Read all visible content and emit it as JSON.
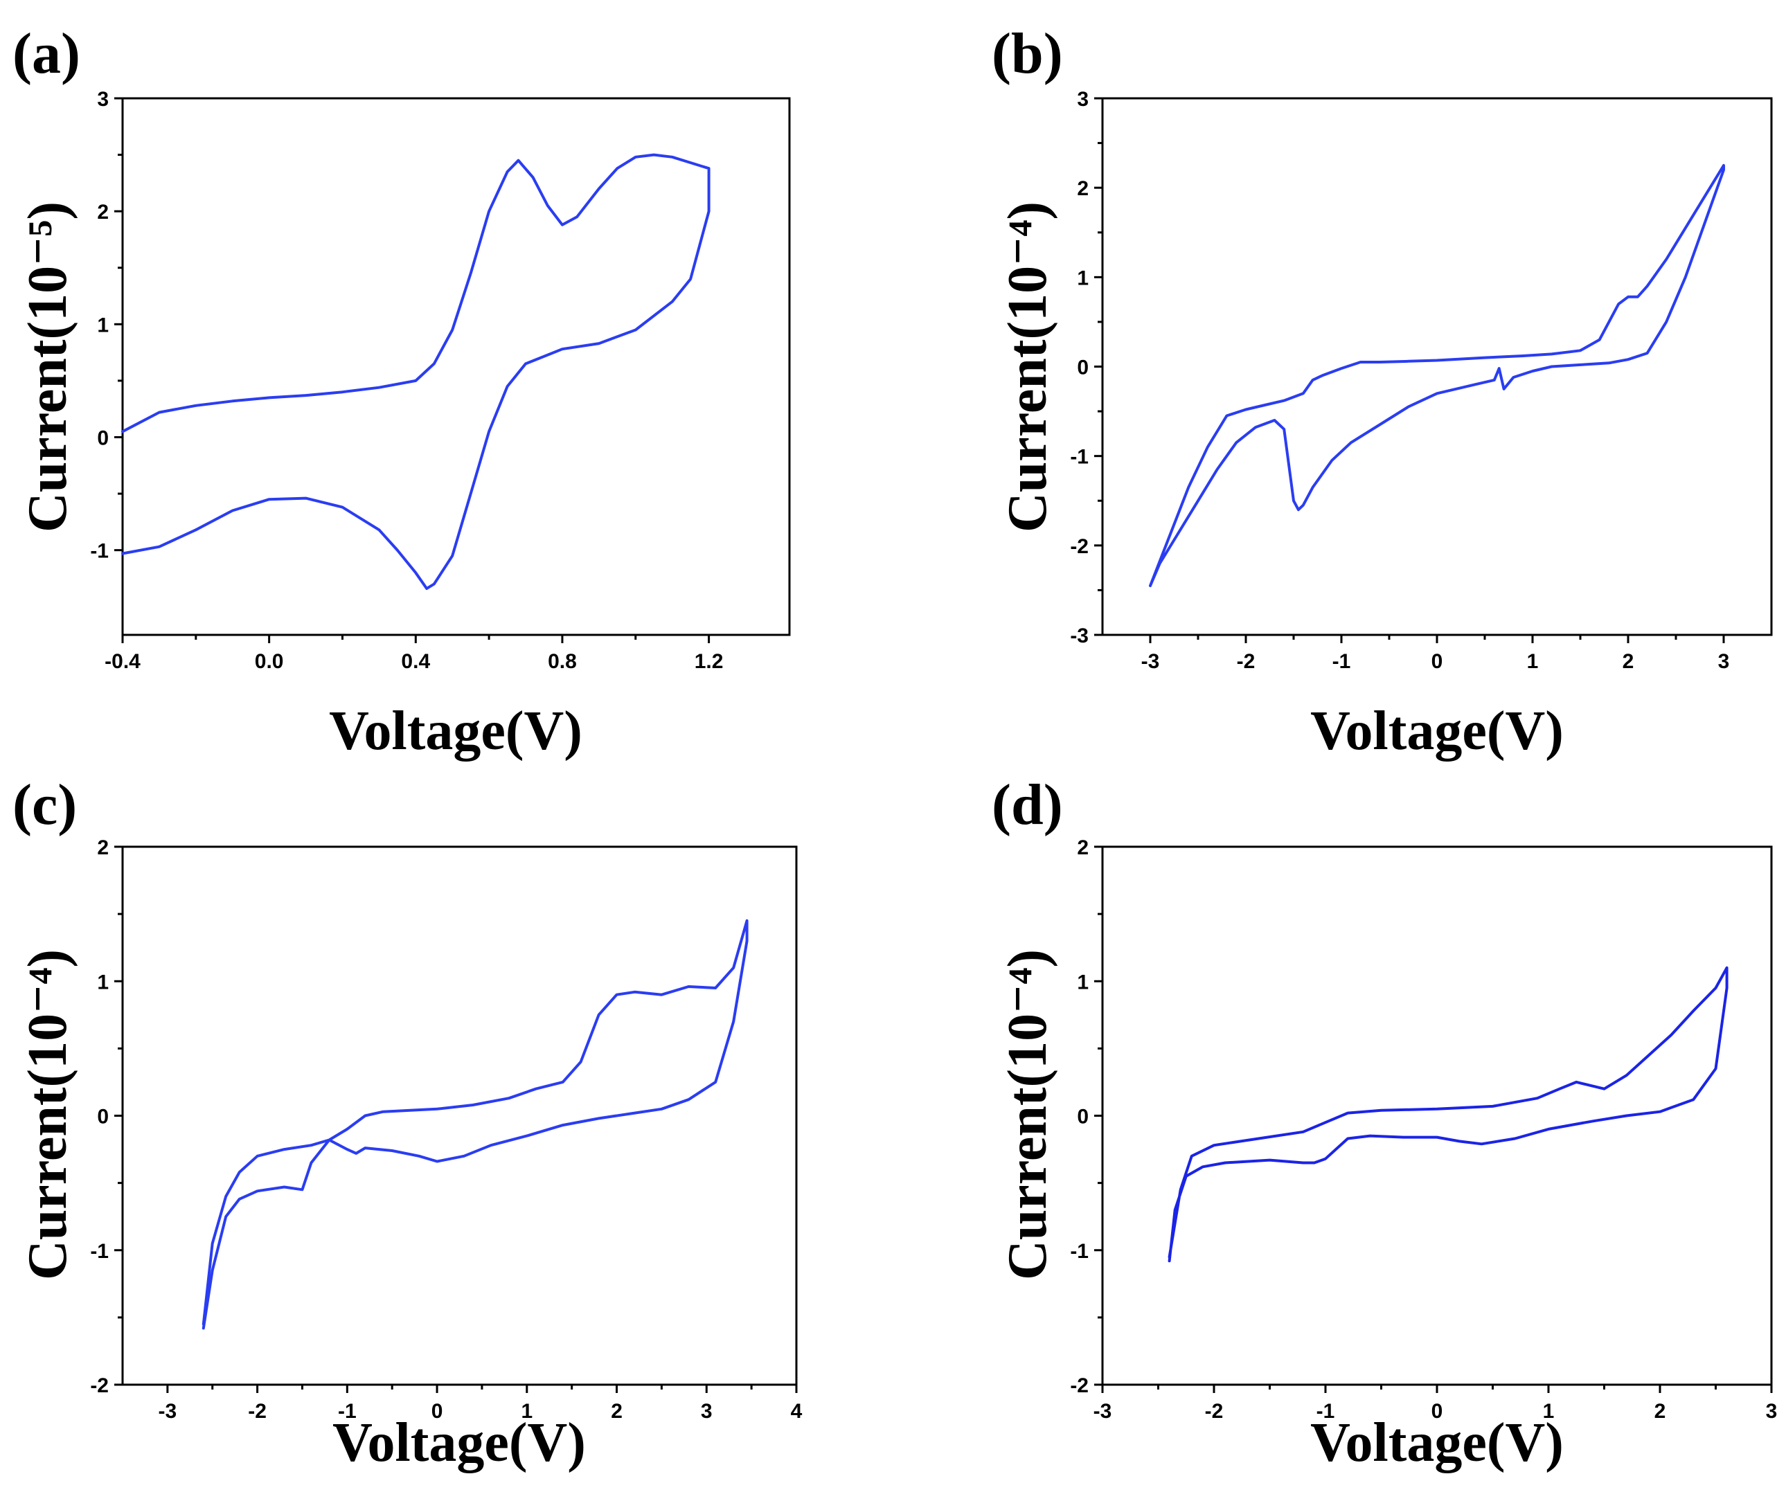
{
  "colors": {
    "curve": "#2a3df2",
    "curve_d": "#1b24e6"
  },
  "chart_data": [
    {
      "type": "line",
      "panel_label": "(a)",
      "xlabel": "Voltage(V)",
      "ylabel": "Current(10⁻⁵)",
      "xlim": [
        -0.4,
        1.42
      ],
      "ylim": [
        -1.75,
        3.0
      ],
      "xticks": [
        -0.4,
        0.0,
        0.4,
        0.8,
        1.2
      ],
      "xtick_labels": [
        "-0.4",
        "0.0",
        "0.4",
        "0.8",
        "1.2"
      ],
      "yticks": [
        -1,
        0,
        1,
        2,
        3
      ],
      "ytick_labels": [
        "-1",
        "0",
        "1",
        "2",
        "3"
      ],
      "series": [
        {
          "x": [
            -0.4,
            -0.3,
            -0.2,
            -0.1,
            0.0,
            0.1,
            0.2,
            0.3,
            0.4,
            0.45,
            0.5,
            0.55,
            0.6,
            0.65,
            0.68,
            0.72,
            0.76,
            0.8,
            0.84,
            0.9,
            0.95,
            1.0,
            1.05,
            1.1,
            1.15,
            1.2,
            1.2,
            1.15,
            1.1,
            1.0,
            0.9,
            0.8,
            0.7,
            0.65,
            0.6,
            0.55,
            0.5,
            0.45,
            0.43,
            0.4,
            0.35,
            0.3,
            0.2,
            0.1,
            0.0,
            -0.1,
            -0.2,
            -0.3,
            -0.4
          ],
          "y": [
            0.05,
            0.22,
            0.28,
            0.32,
            0.35,
            0.37,
            0.4,
            0.44,
            0.5,
            0.65,
            0.95,
            1.45,
            2.0,
            2.35,
            2.45,
            2.3,
            2.05,
            1.88,
            1.95,
            2.2,
            2.38,
            2.48,
            2.5,
            2.48,
            2.43,
            2.38,
            2.0,
            1.4,
            1.2,
            0.95,
            0.83,
            0.78,
            0.65,
            0.45,
            0.05,
            -0.5,
            -1.05,
            -1.3,
            -1.34,
            -1.2,
            -1.0,
            -0.82,
            -0.62,
            -0.54,
            -0.55,
            -0.65,
            -0.82,
            -0.97,
            -1.03
          ]
        }
      ]
    },
    {
      "type": "line",
      "panel_label": "(b)",
      "xlabel": "Voltage(V)",
      "ylabel": "Current(10⁻⁴)",
      "xlim": [
        -3.5,
        3.5
      ],
      "ylim": [
        -3.0,
        3.0
      ],
      "xticks": [
        -3,
        -2,
        -1,
        0,
        1,
        2,
        3
      ],
      "xtick_labels": [
        "-3",
        "-2",
        "-1",
        "0",
        "1",
        "2",
        "3"
      ],
      "yticks": [
        -3,
        -2,
        -1,
        0,
        1,
        2,
        3
      ],
      "ytick_labels": [
        "-3",
        "-2",
        "-1",
        "0",
        "1",
        "2",
        "3"
      ],
      "series": [
        {
          "x": [
            -3.0,
            -2.8,
            -2.6,
            -2.4,
            -2.2,
            -2.0,
            -1.8,
            -1.6,
            -1.4,
            -1.3,
            -1.2,
            -1.0,
            -0.8,
            -0.6,
            -0.3,
            0.0,
            0.5,
            0.9,
            1.2,
            1.5,
            1.7,
            1.8,
            1.9,
            2.0,
            2.1,
            2.2,
            2.4,
            2.6,
            2.8,
            3.0,
            3.0,
            2.8,
            2.6,
            2.4,
            2.2,
            2.0,
            1.8,
            1.5,
            1.2,
            1.0,
            0.8,
            0.7,
            0.65,
            0.6,
            0.4,
            0.2,
            0.0,
            -0.3,
            -0.6,
            -0.9,
            -1.1,
            -1.3,
            -1.4,
            -1.45,
            -1.5,
            -1.55,
            -1.6,
            -1.7,
            -1.9,
            -2.1,
            -2.3,
            -2.5,
            -2.7,
            -2.9,
            -3.0
          ],
          "y": [
            -2.45,
            -1.9,
            -1.35,
            -0.9,
            -0.55,
            -0.48,
            -0.43,
            -0.38,
            -0.3,
            -0.15,
            -0.1,
            -0.02,
            0.05,
            0.05,
            0.06,
            0.07,
            0.1,
            0.12,
            0.14,
            0.18,
            0.3,
            0.5,
            0.7,
            0.78,
            0.78,
            0.9,
            1.2,
            1.55,
            1.9,
            2.25,
            2.2,
            1.6,
            1.0,
            0.5,
            0.15,
            0.08,
            0.04,
            0.02,
            0.0,
            -0.05,
            -0.12,
            -0.25,
            -0.02,
            -0.15,
            -0.2,
            -0.25,
            -0.3,
            -0.45,
            -0.65,
            -0.85,
            -1.05,
            -1.35,
            -1.55,
            -1.6,
            -1.5,
            -1.1,
            -0.7,
            -0.6,
            -0.68,
            -0.85,
            -1.15,
            -1.5,
            -1.85,
            -2.2,
            -2.45
          ]
        }
      ]
    },
    {
      "type": "line",
      "panel_label": "(c)",
      "xlabel": "Voltage(V)",
      "ylabel": "Current(10⁻⁴)",
      "xlim": [
        -3.5,
        4.0
      ],
      "ylim": [
        -2.0,
        2.0
      ],
      "xticks": [
        -3,
        -2,
        -1,
        0,
        1,
        2,
        3,
        4
      ],
      "xtick_labels": [
        "-3",
        "-2",
        "-1",
        "0",
        "1",
        "2",
        "3",
        "4"
      ],
      "yticks": [
        -2,
        -1,
        0,
        1,
        2
      ],
      "ytick_labels": [
        "-2",
        "-1",
        "0",
        "1",
        "2"
      ],
      "series": [
        {
          "x": [
            -2.6,
            -2.5,
            -2.35,
            -2.2,
            -2.0,
            -1.7,
            -1.4,
            -1.2,
            -1.0,
            -0.8,
            -0.6,
            -0.3,
            0.0,
            0.4,
            0.8,
            1.1,
            1.4,
            1.6,
            1.8,
            2.0,
            2.2,
            2.5,
            2.8,
            3.1,
            3.3,
            3.45,
            3.45,
            3.3,
            3.1,
            2.8,
            2.5,
            2.2,
            1.8,
            1.4,
            1.0,
            0.6,
            0.3,
            0.0,
            -0.2,
            -0.5,
            -0.8,
            -0.9,
            -1.0,
            -1.2,
            -1.4,
            -1.5,
            -1.7,
            -2.0,
            -2.2,
            -2.35,
            -2.5,
            -2.6
          ],
          "y": [
            -1.55,
            -0.95,
            -0.6,
            -0.42,
            -0.3,
            -0.25,
            -0.22,
            -0.18,
            -0.1,
            0.0,
            0.03,
            0.04,
            0.05,
            0.08,
            0.13,
            0.2,
            0.25,
            0.4,
            0.75,
            0.9,
            0.92,
            0.9,
            0.96,
            0.95,
            1.1,
            1.45,
            1.3,
            0.7,
            0.25,
            0.12,
            0.05,
            0.02,
            -0.02,
            -0.07,
            -0.15,
            -0.22,
            -0.3,
            -0.34,
            -0.3,
            -0.26,
            -0.24,
            -0.28,
            -0.25,
            -0.18,
            -0.35,
            -0.55,
            -0.53,
            -0.56,
            -0.62,
            -0.75,
            -1.15,
            -1.58
          ]
        }
      ]
    },
    {
      "type": "line",
      "panel_label": "(d)",
      "xlabel": "Voltage(V)",
      "ylabel": "Current(10⁻⁴)",
      "xlim": [
        -3.0,
        3.0
      ],
      "ylim": [
        -2.0,
        2.0
      ],
      "xticks": [
        -3,
        -2,
        -1,
        0,
        1,
        2,
        3
      ],
      "xtick_labels": [
        "-3",
        "-2",
        "-1",
        "0",
        "1",
        "2",
        "3"
      ],
      "yticks": [
        -2,
        -1,
        0,
        1,
        2
      ],
      "ytick_labels": [
        "-2",
        "-1",
        "0",
        "1",
        "2"
      ],
      "series": [
        {
          "x": [
            -2.4,
            -2.3,
            -2.2,
            -2.0,
            -1.6,
            -1.2,
            -1.0,
            -0.8,
            -0.5,
            0.0,
            0.5,
            0.9,
            1.1,
            1.25,
            1.35,
            1.5,
            1.7,
            1.9,
            2.1,
            2.3,
            2.5,
            2.6,
            2.6,
            2.5,
            2.3,
            2.0,
            1.7,
            1.4,
            1.0,
            0.7,
            0.4,
            0.2,
            0.0,
            -0.3,
            -0.6,
            -0.8,
            -1.0,
            -1.1,
            -1.2,
            -1.5,
            -1.9,
            -2.1,
            -2.25,
            -2.35,
            -2.4
          ],
          "y": [
            -1.05,
            -0.55,
            -0.3,
            -0.22,
            -0.17,
            -0.12,
            -0.05,
            0.02,
            0.04,
            0.05,
            0.07,
            0.13,
            0.2,
            0.25,
            0.23,
            0.2,
            0.3,
            0.45,
            0.6,
            0.78,
            0.95,
            1.1,
            0.95,
            0.35,
            0.12,
            0.03,
            0.0,
            -0.04,
            -0.1,
            -0.17,
            -0.21,
            -0.19,
            -0.16,
            -0.16,
            -0.15,
            -0.17,
            -0.32,
            -0.35,
            -0.35,
            -0.33,
            -0.35,
            -0.38,
            -0.45,
            -0.7,
            -1.08
          ]
        }
      ]
    }
  ]
}
